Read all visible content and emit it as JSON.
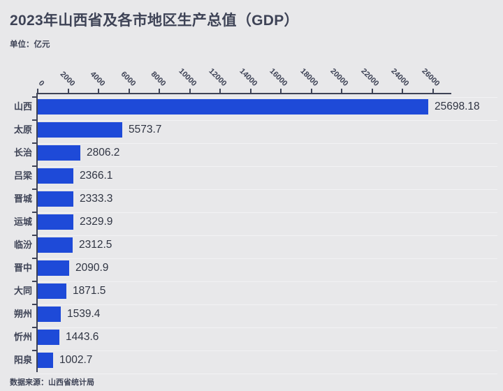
{
  "page": {
    "title": "2023年山西省及各市地区生产总值（GDP）",
    "subtitle": "单位：亿元",
    "footer": "数据来源：山西省统计局"
  },
  "colors": {
    "background": "#e8e8ea",
    "bar": "#1e4ad8",
    "text": "#3e4356",
    "value_text": "#2f3442",
    "row_separator": "#f2f2f4"
  },
  "chart_data": {
    "type": "bar",
    "orientation": "horizontal",
    "title": "2023年山西省及各市地区生产总值（GDP）",
    "unit": "亿元",
    "categories": [
      "山西",
      "太原",
      "长治",
      "吕梁",
      "晋城",
      "运城",
      "临汾",
      "晋中",
      "大同",
      "朔州",
      "忻州",
      "阳泉"
    ],
    "values": [
      25698.18,
      5573.7,
      2806.2,
      2366.1,
      2333.3,
      2329.9,
      2312.5,
      2090.9,
      1871.5,
      1539.4,
      1443.6,
      1002.7
    ],
    "value_labels": [
      "25698.18",
      "5573.7",
      "2806.2",
      "2366.1",
      "2333.3",
      "2329.9",
      "2312.5",
      "2090.9",
      "1871.5",
      "1539.4",
      "1443.6",
      "1002.7"
    ],
    "x_ticks": [
      0,
      2000,
      4000,
      6000,
      8000,
      10000,
      12000,
      14000,
      16000,
      18000,
      20000,
      22000,
      24000,
      26000
    ],
    "x_axis_position": "top",
    "x_tick_label_rotation_deg": 45,
    "xlim": [
      0,
      27200
    ],
    "grid": false,
    "legend": false,
    "source": "数据来源：山西省统计局"
  }
}
